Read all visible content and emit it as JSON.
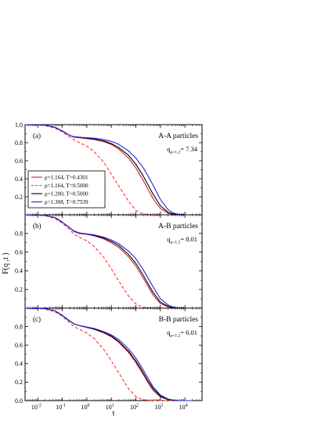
{
  "chart_data": {
    "type": "line",
    "xscale": "log",
    "xlim": [
      0.003,
      50000
    ],
    "ylim": [
      0,
      1.0
    ],
    "xticks": [
      {
        "value": 0.01,
        "base": "10",
        "exp": "-2"
      },
      {
        "value": 0.1,
        "base": "10",
        "exp": "-1"
      },
      {
        "value": 1,
        "base": "10",
        "exp": "0"
      },
      {
        "value": 10,
        "base": "10",
        "exp": "1"
      },
      {
        "value": 100,
        "base": "10",
        "exp": "2"
      },
      {
        "value": 1000,
        "base": "10",
        "exp": "3"
      },
      {
        "value": 10000,
        "base": "10",
        "exp": "4"
      }
    ],
    "yticks": [
      {
        "value": 0.2,
        "label": "0.2"
      },
      {
        "value": 0.4,
        "label": "0.4"
      },
      {
        "value": 0.6,
        "label": "0.6"
      },
      {
        "value": 0.8,
        "label": "0.8"
      }
    ],
    "ytick_top": {
      "value": 1.0,
      "label": "1.0"
    },
    "ytick_bottom": {
      "value": 0.0,
      "label": "0.0"
    },
    "xlabel": "t",
    "ylabel": "F(q ,t )",
    "series_styles": [
      {
        "name": "ρ=1.164, T=0.4301",
        "color": "#cc2222",
        "dash": ""
      },
      {
        "name": "ρ=1.164, T=0.5000",
        "color": "#ff3333",
        "dash": "4,2.5"
      },
      {
        "name": "ρ=1.200, T=0.5000",
        "color": "#000000",
        "dash": ""
      },
      {
        "name": "ρ=1.308, T=0.7539",
        "color": "#2222dd",
        "dash": ""
      }
    ],
    "panels": [
      {
        "label": "(a)",
        "title": "A-A particles",
        "q_main": "q",
        "q_sub": "ρ=1.2",
        "q_val": "= 7.34",
        "series": [
          {
            "x": [
              0.003,
              0.02,
              0.05,
              0.1,
              0.2,
              0.3,
              0.5,
              1,
              2,
              5,
              10,
              20,
              50,
              100,
              200,
              300,
              500,
              1000,
              2000,
              3000,
              5000,
              10000
            ],
            "y": [
              1.0,
              0.995,
              0.97,
              0.93,
              0.88,
              0.86,
              0.855,
              0.845,
              0.835,
              0.81,
              0.78,
              0.73,
              0.63,
              0.52,
              0.38,
              0.29,
              0.18,
              0.07,
              0.02,
              0.008,
              0.002,
              0.0
            ]
          },
          {
            "x": [
              0.003,
              0.02,
              0.05,
              0.1,
              0.2,
              0.3,
              0.5,
              1,
              2,
              5,
              10,
              20,
              50,
              100,
              150,
              200,
              300,
              500,
              1000,
              2000,
              5000
            ],
            "y": [
              1.0,
              0.99,
              0.96,
              0.92,
              0.86,
              0.83,
              0.8,
              0.76,
              0.7,
              0.58,
              0.45,
              0.32,
              0.15,
              0.05,
              0.02,
              0.01,
              0.004,
              0.001,
              0.0,
              0.0,
              0.0
            ]
          },
          {
            "x": [
              0.003,
              0.02,
              0.05,
              0.1,
              0.2,
              0.3,
              0.5,
              1,
              2,
              5,
              10,
              20,
              50,
              100,
              200,
              300,
              500,
              1000,
              2000,
              3000,
              5000,
              10000
            ],
            "y": [
              1.0,
              0.995,
              0.97,
              0.93,
              0.88,
              0.865,
              0.86,
              0.85,
              0.84,
              0.82,
              0.79,
              0.745,
              0.66,
              0.56,
              0.43,
              0.34,
              0.23,
              0.1,
              0.03,
              0.012,
              0.003,
              0.0
            ]
          },
          {
            "x": [
              0.003,
              0.02,
              0.05,
              0.1,
              0.2,
              0.3,
              0.5,
              1,
              2,
              5,
              10,
              20,
              50,
              100,
              200,
              300,
              500,
              1000,
              2000,
              3000,
              5000,
              10000,
              20000
            ],
            "y": [
              1.0,
              0.995,
              0.97,
              0.93,
              0.88,
              0.865,
              0.86,
              0.855,
              0.85,
              0.835,
              0.815,
              0.78,
              0.71,
              0.63,
              0.52,
              0.44,
              0.33,
              0.17,
              0.06,
              0.025,
              0.006,
              0.001,
              0.0
            ]
          }
        ]
      },
      {
        "label": "(b)",
        "title": "A-B particles",
        "q_main": "q",
        "q_sub": "ρ=1.2",
        "q_val": "= 8.01",
        "series": [
          {
            "x": [
              0.003,
              0.02,
              0.05,
              0.1,
              0.2,
              0.3,
              0.5,
              1,
              2,
              5,
              10,
              20,
              50,
              100,
              200,
              300,
              500,
              1000,
              2000,
              3000,
              5000,
              10000
            ],
            "y": [
              1.0,
              0.995,
              0.97,
              0.92,
              0.86,
              0.82,
              0.8,
              0.79,
              0.775,
              0.74,
              0.7,
              0.65,
              0.55,
              0.45,
              0.32,
              0.24,
              0.14,
              0.05,
              0.015,
              0.006,
              0.001,
              0.0
            ]
          },
          {
            "x": [
              0.003,
              0.02,
              0.05,
              0.1,
              0.2,
              0.3,
              0.5,
              1,
              2,
              5,
              10,
              20,
              50,
              100,
              150,
              200,
              300,
              500,
              1000,
              2000,
              5000
            ],
            "y": [
              1.0,
              0.99,
              0.96,
              0.91,
              0.84,
              0.79,
              0.76,
              0.72,
              0.66,
              0.54,
              0.42,
              0.29,
              0.13,
              0.045,
              0.02,
              0.01,
              0.004,
              0.001,
              0.0,
              0.0,
              0.0
            ]
          },
          {
            "x": [
              0.003,
              0.02,
              0.05,
              0.1,
              0.2,
              0.3,
              0.5,
              1,
              2,
              5,
              10,
              20,
              50,
              100,
              200,
              300,
              500,
              1000,
              2000,
              3000,
              5000,
              10000
            ],
            "y": [
              1.0,
              0.995,
              0.97,
              0.92,
              0.86,
              0.825,
              0.805,
              0.795,
              0.78,
              0.75,
              0.715,
              0.67,
              0.575,
              0.48,
              0.35,
              0.27,
              0.17,
              0.065,
              0.02,
              0.008,
              0.002,
              0.0
            ]
          },
          {
            "x": [
              0.003,
              0.02,
              0.05,
              0.1,
              0.2,
              0.3,
              0.5,
              1,
              2,
              5,
              10,
              20,
              50,
              100,
              200,
              300,
              500,
              1000,
              2000,
              3000,
              5000,
              10000,
              20000
            ],
            "y": [
              1.0,
              0.995,
              0.97,
              0.92,
              0.86,
              0.825,
              0.805,
              0.795,
              0.785,
              0.76,
              0.73,
              0.69,
              0.61,
              0.53,
              0.41,
              0.33,
              0.23,
              0.1,
              0.035,
              0.014,
              0.003,
              0.0,
              0.0
            ]
          }
        ]
      },
      {
        "label": "(c)",
        "title": "B-B particles",
        "q_main": "q",
        "q_sub": "ρ=1.2",
        "q_val": "= 6.01",
        "series": [
          {
            "x": [
              0.003,
              0.02,
              0.05,
              0.1,
              0.2,
              0.3,
              0.5,
              1,
              2,
              5,
              10,
              20,
              50,
              100,
              200,
              300,
              500,
              1000,
              2000,
              3000,
              5000,
              10000
            ],
            "y": [
              1.0,
              0.995,
              0.97,
              0.92,
              0.86,
              0.83,
              0.81,
              0.79,
              0.77,
              0.73,
              0.69,
              0.63,
              0.52,
              0.41,
              0.28,
              0.2,
              0.11,
              0.04,
              0.01,
              0.004,
              0.001,
              0.0
            ]
          },
          {
            "x": [
              0.003,
              0.02,
              0.05,
              0.1,
              0.2,
              0.3,
              0.5,
              1,
              2,
              5,
              10,
              20,
              50,
              100,
              150,
              200,
              300,
              500,
              1000,
              2000,
              5000
            ],
            "y": [
              1.0,
              0.99,
              0.96,
              0.91,
              0.84,
              0.8,
              0.77,
              0.73,
              0.67,
              0.55,
              0.43,
              0.3,
              0.13,
              0.045,
              0.02,
              0.01,
              0.004,
              0.001,
              0.0,
              0.0,
              0.0
            ]
          },
          {
            "x": [
              0.003,
              0.02,
              0.05,
              0.1,
              0.2,
              0.3,
              0.5,
              1,
              2,
              5,
              10,
              20,
              50,
              100,
              200,
              300,
              500,
              1000,
              2000,
              3000,
              5000,
              10000
            ],
            "y": [
              1.0,
              0.995,
              0.97,
              0.92,
              0.86,
              0.83,
              0.81,
              0.795,
              0.775,
              0.74,
              0.7,
              0.64,
              0.535,
              0.43,
              0.3,
              0.22,
              0.13,
              0.05,
              0.014,
              0.006,
              0.001,
              0.0
            ]
          },
          {
            "x": [
              0.003,
              0.02,
              0.05,
              0.1,
              0.2,
              0.3,
              0.5,
              1,
              2,
              5,
              10,
              20,
              50,
              100,
              200,
              300,
              500,
              1000,
              2000,
              3000,
              5000,
              10000,
              20000
            ],
            "y": [
              1.0,
              0.995,
              0.97,
              0.92,
              0.86,
              0.83,
              0.81,
              0.795,
              0.78,
              0.745,
              0.71,
              0.66,
              0.56,
              0.46,
              0.33,
              0.25,
              0.15,
              0.06,
              0.018,
              0.007,
              0.002,
              0.0,
              0.0
            ]
          }
        ]
      }
    ],
    "grid": false,
    "legend_placement": "panel (a), lower-left"
  }
}
